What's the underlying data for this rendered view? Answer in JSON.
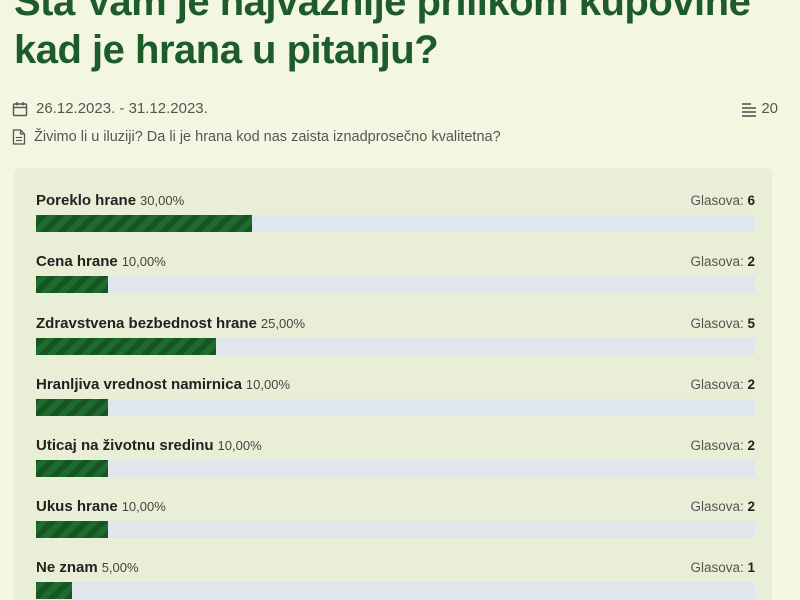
{
  "poll": {
    "title": "Šta Vam je najvažnije prilikom kupovine kad je hrana u pitanju?",
    "date_range": "26.12.2023. - 31.12.2023.",
    "total_votes": "20",
    "description": "Živimo li u iluziji? Da li je hrana kod nas zaista iznadprosečno kvalitetna?",
    "votes_prefix": "Glasova:",
    "accent_color": "#1d5b2a",
    "bar_color": "#1e6b2e",
    "track_color": "#dfe6ec",
    "options": [
      {
        "label": "Poreklo hrane",
        "percent_text": "30,00%",
        "percent": 30,
        "votes": "6"
      },
      {
        "label": "Cena hrane",
        "percent_text": "10,00%",
        "percent": 10,
        "votes": "2"
      },
      {
        "label": "Zdravstvena bezbednost hrane",
        "percent_text": "25,00%",
        "percent": 25,
        "votes": "5"
      },
      {
        "label": "Hranljiva vrednost namirnica",
        "percent_text": "10,00%",
        "percent": 10,
        "votes": "2"
      },
      {
        "label": "Uticaj na životnu sredinu",
        "percent_text": "10,00%",
        "percent": 10,
        "votes": "2"
      },
      {
        "label": "Ukus hrane",
        "percent_text": "10,00%",
        "percent": 10,
        "votes": "2"
      },
      {
        "label": "Ne znam",
        "percent_text": "5,00%",
        "percent": 5,
        "votes": "1"
      }
    ]
  }
}
